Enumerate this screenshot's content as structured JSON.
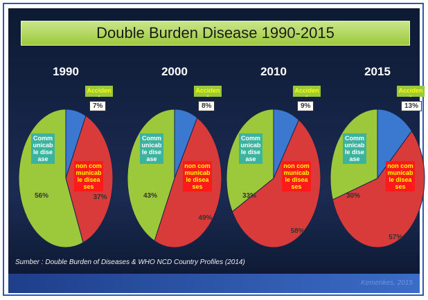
{
  "title": "Double Burden Disease 1990-2015",
  "source": "Sumber : Double Burden of Diseases & WHO NCD Country Profiles (2014)",
  "credit": "Kemenkes, 2015",
  "chart_data": [
    {
      "type": "pie",
      "title": "1990",
      "categories": [
        "Accident",
        "non communicable diseases",
        "Communicable disease"
      ],
      "values": [
        7,
        37,
        56
      ],
      "value_labels": [
        "7%",
        "37%",
        "56%"
      ],
      "colors": [
        "#3b78d0",
        "#d93a3a",
        "#9cc93c"
      ]
    },
    {
      "type": "pie",
      "title": "2000",
      "categories": [
        "Accident",
        "non communicable diseases",
        "Communicable disease"
      ],
      "values": [
        8,
        49,
        43
      ],
      "value_labels": [
        "8%",
        "49%",
        "43%"
      ],
      "colors": [
        "#3b78d0",
        "#d93a3a",
        "#9cc93c"
      ]
    },
    {
      "type": "pie",
      "title": "2010",
      "categories": [
        "Accident",
        "non communicable diseases",
        "Communicable disease"
      ],
      "values": [
        9,
        58,
        33
      ],
      "value_labels": [
        "9%",
        "58%",
        "33%"
      ],
      "colors": [
        "#3b78d0",
        "#d93a3a",
        "#9cc93c"
      ]
    },
    {
      "type": "pie",
      "title": "2015",
      "categories": [
        "Accident",
        "non communicable diseases",
        "Communicable disease"
      ],
      "values": [
        13,
        57,
        30
      ],
      "value_labels": [
        "13%",
        "57%",
        "30%"
      ],
      "colors": [
        "#3b78d0",
        "#d93a3a",
        "#9cc93c"
      ]
    }
  ]
}
